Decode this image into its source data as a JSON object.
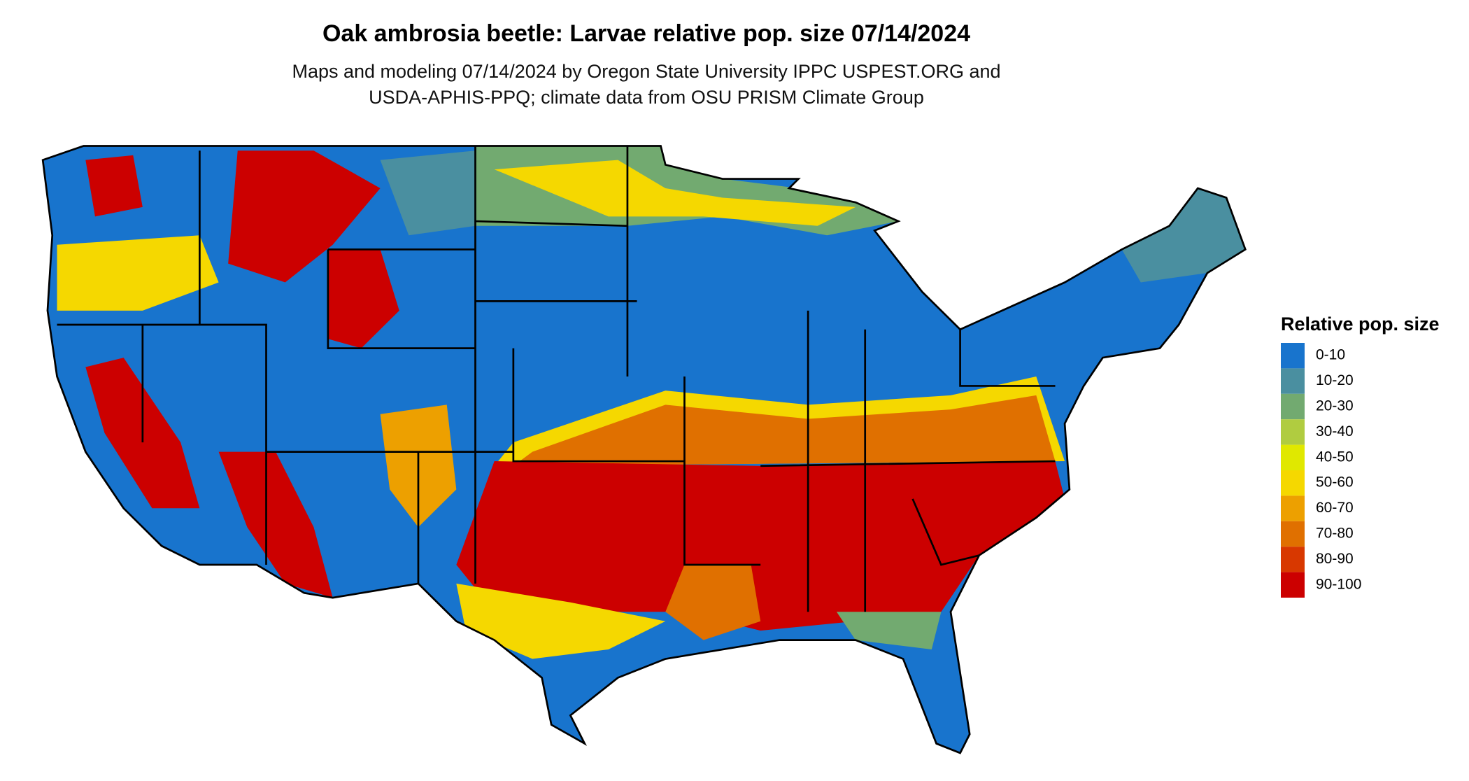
{
  "title": "Oak ambrosia beetle: Larvae relative pop. size 07/14/2024",
  "subtitle": [
    "Maps and modeling 07/14/2024 by Oregon State University IPPC USPEST.ORG and",
    "USDA-APHIS-PPQ; climate data from OSU PRISM Climate Group"
  ],
  "legend": {
    "title": "Relative pop. size",
    "items": [
      {
        "label": "0-10",
        "color": "#1874cd"
      },
      {
        "label": "10-20",
        "color": "#4a8fa0"
      },
      {
        "label": "20-30",
        "color": "#72aa70"
      },
      {
        "label": "30-40",
        "color": "#b0cc40"
      },
      {
        "label": "40-50",
        "color": "#e0e800"
      },
      {
        "label": "50-60",
        "color": "#f5d800"
      },
      {
        "label": "60-70",
        "color": "#eda000"
      },
      {
        "label": "70-80",
        "color": "#e07000"
      },
      {
        "label": "80-90",
        "color": "#d83800"
      },
      {
        "label": "90-100",
        "color": "#cc0000"
      }
    ]
  }
}
